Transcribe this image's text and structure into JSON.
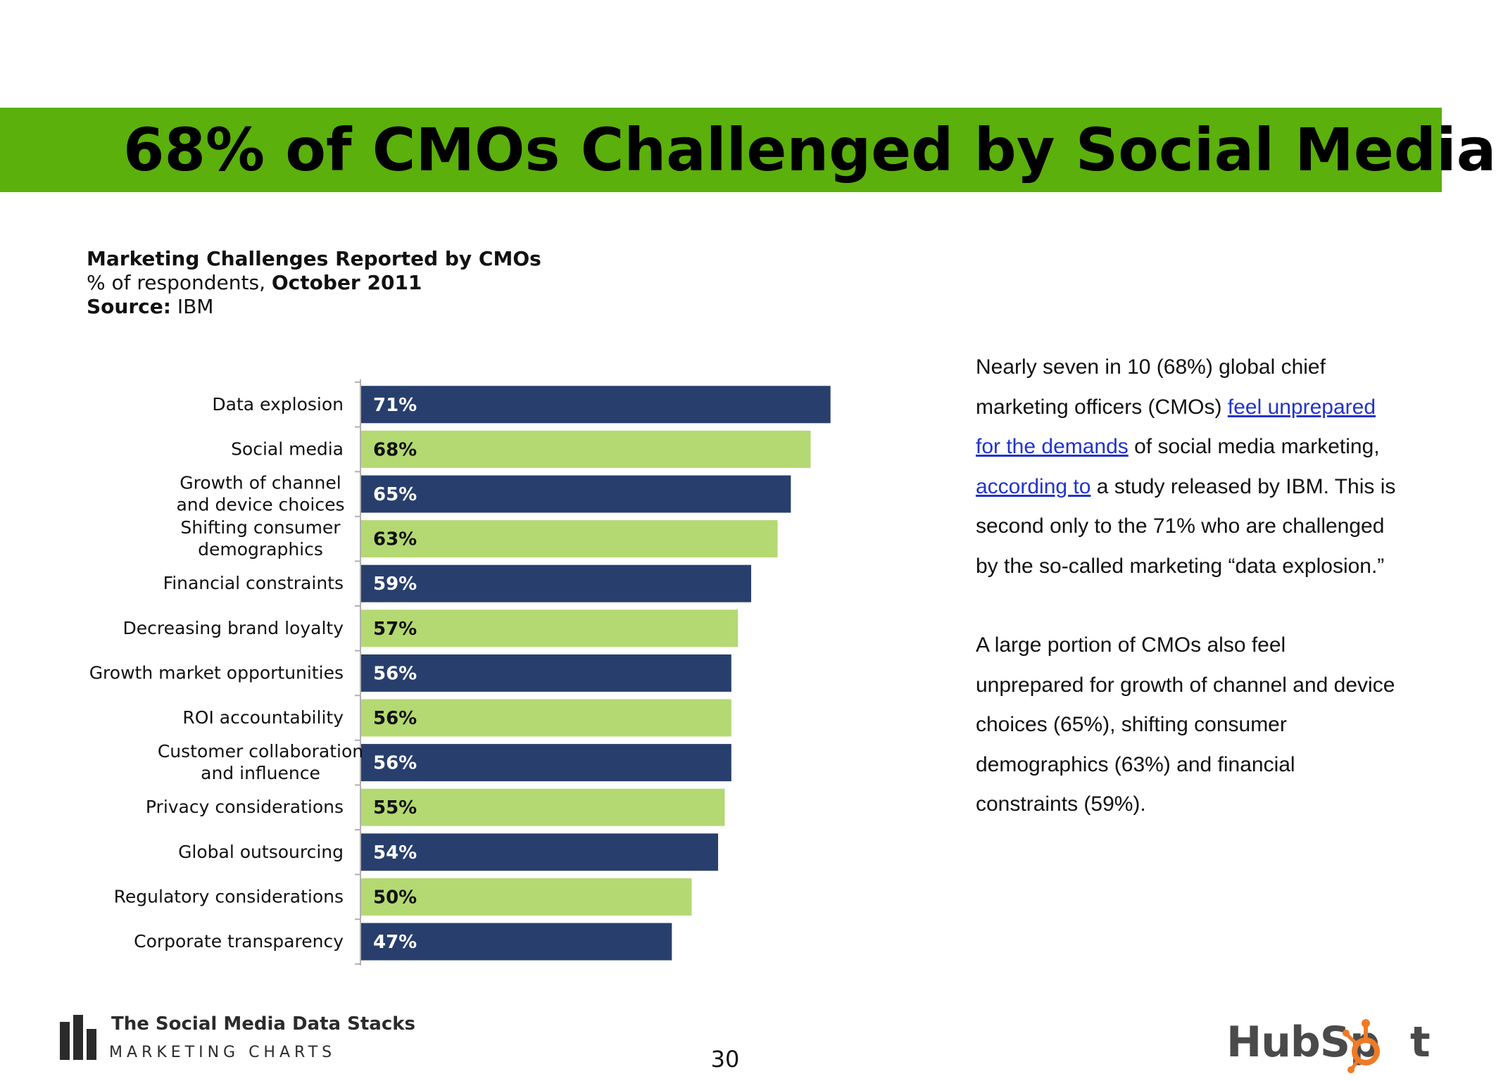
{
  "slide": {
    "title": "68% of CMOs Challenged by Social Media",
    "page_number": "30",
    "colors": {
      "title_bar": "#5bb00b",
      "bar_dark": "#283f6d",
      "bar_light": "#b4d972",
      "link": "#2233cc",
      "hubspot_orange": "#f07a26"
    }
  },
  "chart_header": {
    "title": "Marketing Challenges Reported by CMOs",
    "subtitle_prefix": "% of respondents, ",
    "subtitle_date": "October 2011",
    "source_label": "Source:",
    "source_value": " IBM"
  },
  "chart_data": {
    "type": "bar",
    "orientation": "horizontal",
    "title": "Marketing Challenges Reported by CMOs",
    "xlim": [
      0,
      100
    ],
    "grid": false,
    "value_suffix": "%",
    "categories": [
      [
        "Data explosion"
      ],
      [
        "Social media"
      ],
      [
        "Growth of channel",
        "and device choices"
      ],
      [
        "Shifting consumer",
        "demographics"
      ],
      [
        "Financial constraints"
      ],
      [
        "Decreasing brand loyalty"
      ],
      [
        "Growth market opportunities"
      ],
      [
        "ROI accountability"
      ],
      [
        "Customer collaboration",
        "and influence"
      ],
      [
        "Privacy considerations"
      ],
      [
        "Global outsourcing"
      ],
      [
        "Regulatory considerations"
      ],
      [
        "Corporate transparency"
      ]
    ],
    "values": [
      71,
      68,
      65,
      63,
      59,
      57,
      56,
      56,
      56,
      55,
      54,
      50,
      47
    ],
    "bar_colors": [
      "dark",
      "light",
      "dark",
      "light",
      "dark",
      "light",
      "dark",
      "light",
      "dark",
      "light",
      "dark",
      "light",
      "dark"
    ]
  },
  "body": {
    "p1_a": "Nearly seven in 10 (68%) global chief marketing officers (CMOs) ",
    "p1_link1": "feel unprepared for the demands",
    "p1_b": " of social media marketing, ",
    "p1_link2": "according to",
    "p1_c": " a study released by IBM. This is second only to the 71% who are challenged by the so-called marketing “data explosion.”",
    "p2": "A large portion of CMOs also feel unprepared for growth of channel and device choices (65%), shifting consumer demographics (63%) and financial constraints (59%)."
  },
  "footer": {
    "stack_title": "The Social Media Data Stacks",
    "brand": "MARKETING CHARTS",
    "hubspot_text": "HubSp",
    "hubspot_end": "t"
  }
}
